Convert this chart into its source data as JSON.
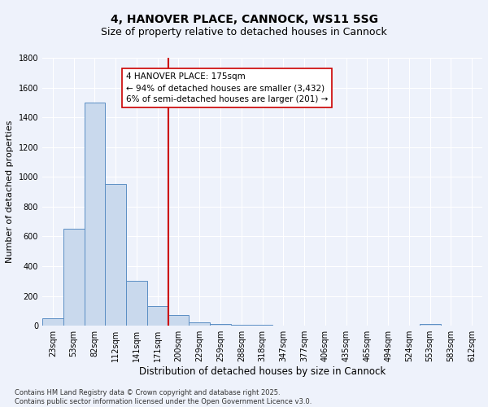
{
  "title": "4, HANOVER PLACE, CANNOCK, WS11 5SG",
  "subtitle": "Size of property relative to detached houses in Cannock",
  "xlabel": "Distribution of detached houses by size in Cannock",
  "ylabel": "Number of detached properties",
  "bins": [
    "23sqm",
    "53sqm",
    "82sqm",
    "112sqm",
    "141sqm",
    "171sqm",
    "200sqm",
    "229sqm",
    "259sqm",
    "288sqm",
    "318sqm",
    "347sqm",
    "377sqm",
    "406sqm",
    "435sqm",
    "465sqm",
    "494sqm",
    "524sqm",
    "553sqm",
    "583sqm",
    "612sqm"
  ],
  "values": [
    50,
    650,
    1500,
    950,
    300,
    135,
    70,
    25,
    15,
    5,
    5,
    0,
    0,
    0,
    0,
    0,
    0,
    0,
    15,
    0,
    0
  ],
  "bar_color": "#c9d9ed",
  "bar_edge_color": "#5b8ec4",
  "vline_x_idx": 5,
  "vline_color": "#cc0000",
  "annotation_line1": "4 HANOVER PLACE: 175sqm",
  "annotation_line2": "← 94% of detached houses are smaller (3,432)",
  "annotation_line3": "6% of semi-detached houses are larger (201) →",
  "annotation_box_color": "#ffffff",
  "annotation_box_edge": "#cc0000",
  "ylim": [
    0,
    1800
  ],
  "yticks": [
    0,
    200,
    400,
    600,
    800,
    1000,
    1200,
    1400,
    1600,
    1800
  ],
  "footer": "Contains HM Land Registry data © Crown copyright and database right 2025.\nContains public sector information licensed under the Open Government Licence v3.0.",
  "bg_color": "#eef2fb",
  "grid_color": "#ffffff",
  "title_fontsize": 10,
  "subtitle_fontsize": 9,
  "label_fontsize": 8,
  "tick_fontsize": 7,
  "annotation_fontsize": 7.5,
  "footer_fontsize": 6
}
